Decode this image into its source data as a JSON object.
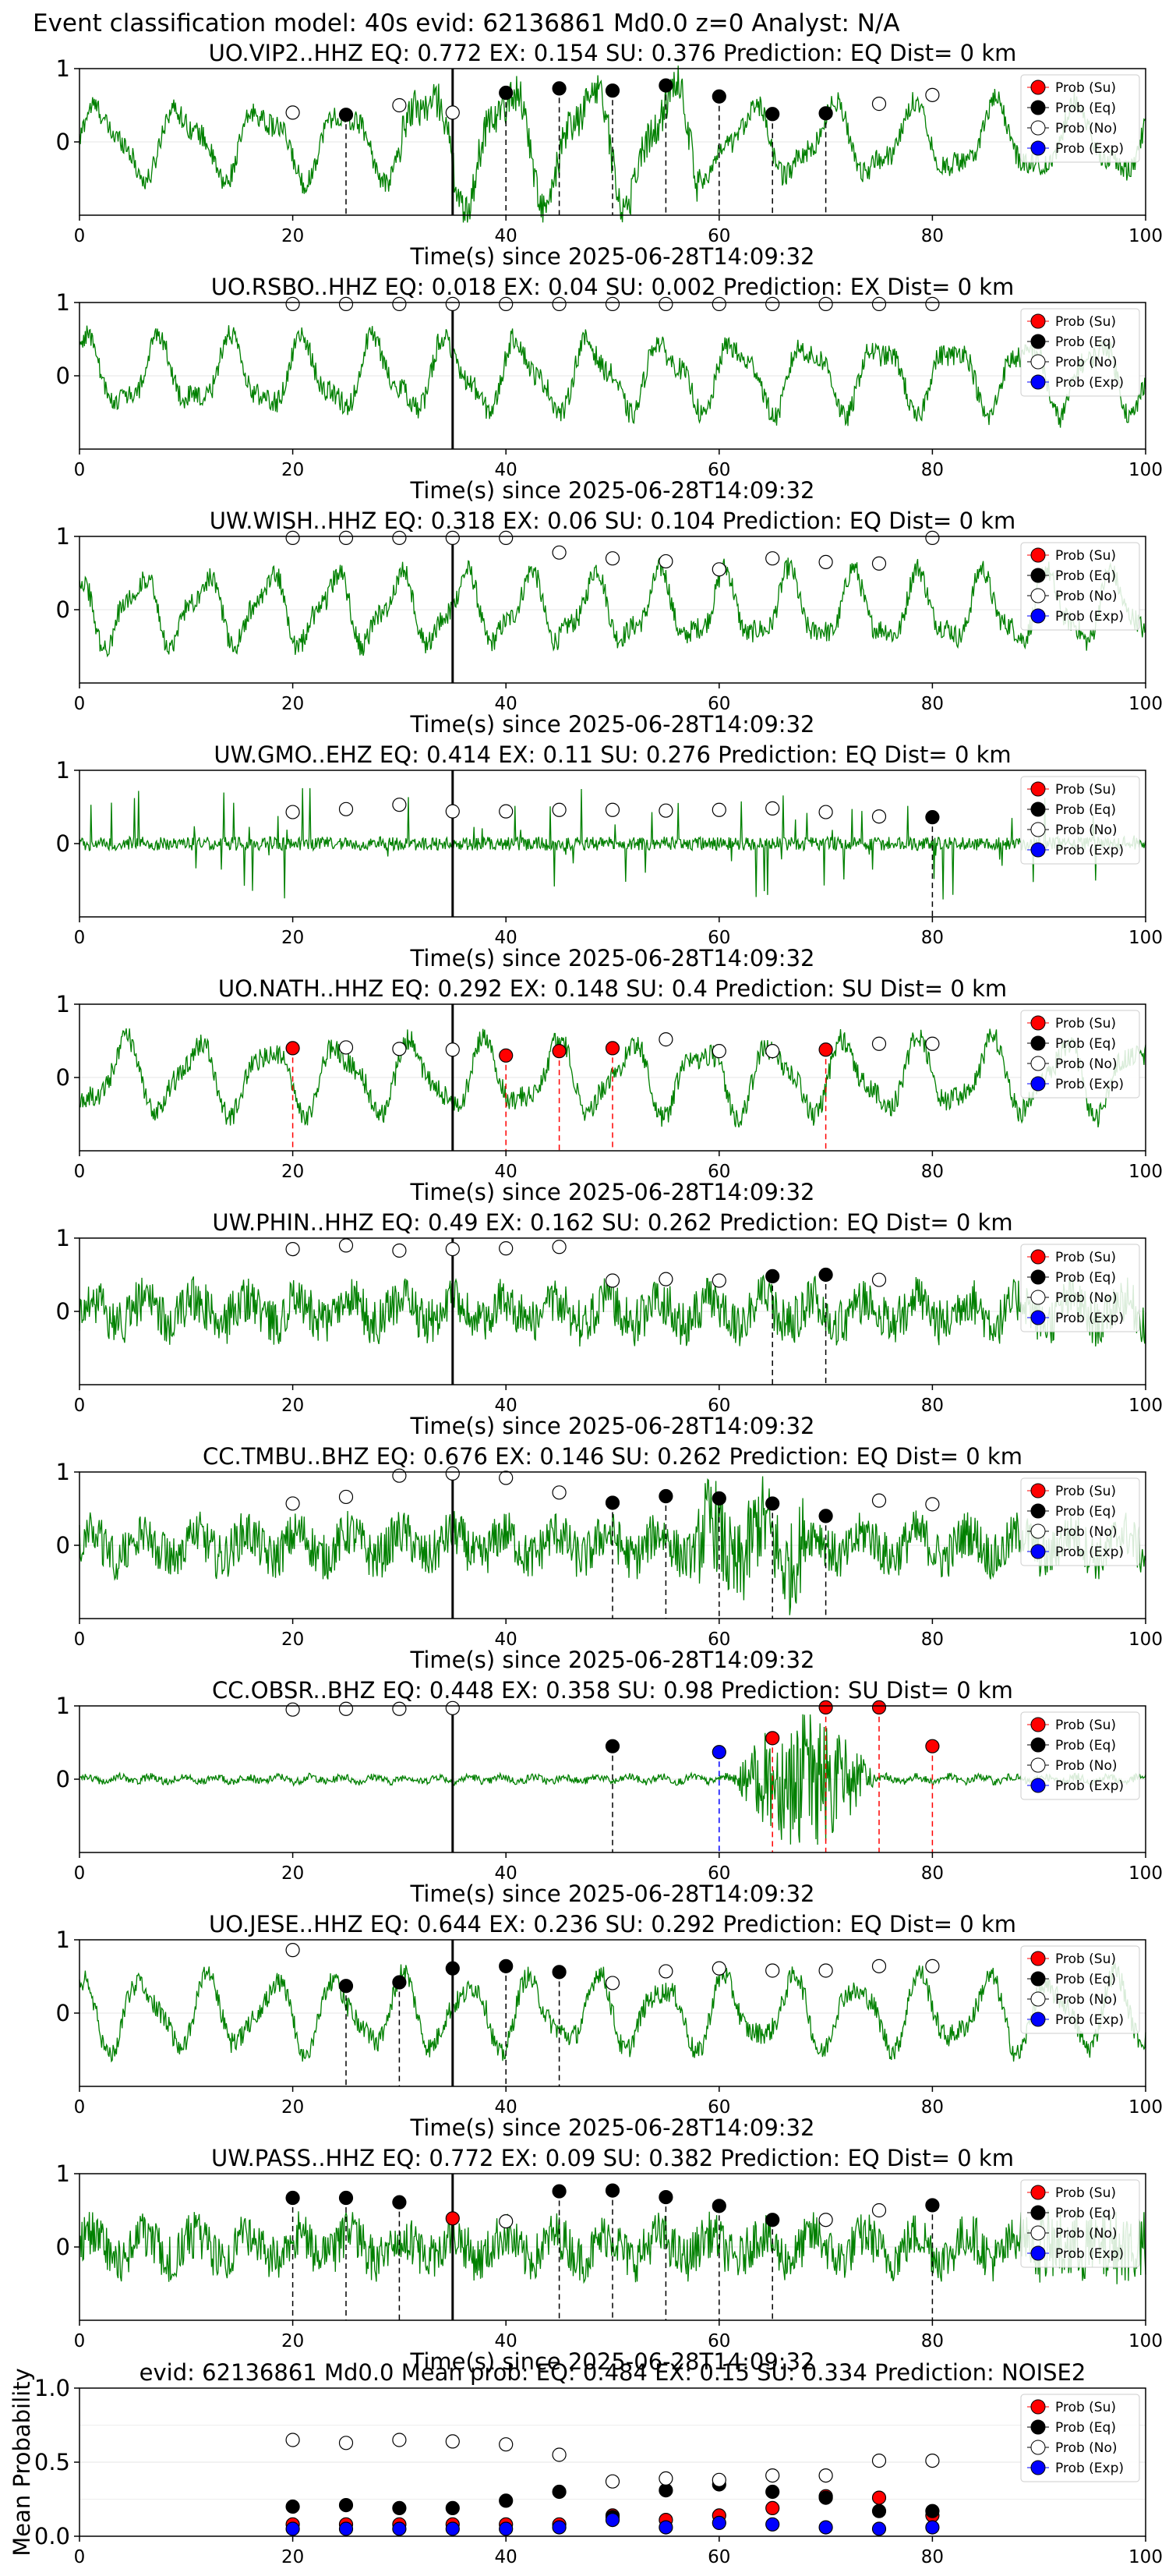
{
  "header": "Event classification model: 40s evid: 62136861 Md0.0 z=0 Analyst: N/A",
  "x_axis_label": "Time(s) since 2025-06-28T14:09:32",
  "legend": [
    "Prob (Su)",
    "Prob (Eq)",
    "Prob (No)",
    "Prob (Exp)"
  ],
  "colors": {
    "Su": "#ff0000",
    "Eq": "#000000",
    "No": "#ffffff",
    "Exp": "#0000ff",
    "trace": "#008000",
    "su_line": "#ff0000",
    "eq_line": "#000000",
    "exp_line": "#0000ff"
  },
  "chart_data": [
    {
      "type": "line",
      "station": "UO.VIP2..HHZ",
      "title": "UO.VIP2..HHZ   EQ: 0.772  EX: 0.154  SU: 0.376   Prediction: EQ    Dist= 0 km",
      "xlim": [
        0,
        100
      ],
      "ylim": [
        -1,
        1
      ],
      "xticks": [
        0,
        20,
        40,
        60,
        80,
        100
      ],
      "yticks": [
        1,
        0
      ],
      "marker_time": 35,
      "trace_style": "osc",
      "points": [
        {
          "x": 20,
          "y": 0.4,
          "c": "No"
        },
        {
          "x": 25,
          "y": 0.37,
          "c": "Eq",
          "line": "Eq"
        },
        {
          "x": 30,
          "y": 0.5,
          "c": "No"
        },
        {
          "x": 35,
          "y": 0.4,
          "c": "No"
        },
        {
          "x": 40,
          "y": 0.67,
          "c": "Eq",
          "line": "Eq"
        },
        {
          "x": 45,
          "y": 0.73,
          "c": "Eq",
          "line": "Eq"
        },
        {
          "x": 50,
          "y": 0.7,
          "c": "Eq",
          "line": "Eq"
        },
        {
          "x": 55,
          "y": 0.77,
          "c": "Eq",
          "line": "Eq"
        },
        {
          "x": 60,
          "y": 0.62,
          "c": "Eq",
          "line": "Eq"
        },
        {
          "x": 65,
          "y": 0.38,
          "c": "Eq",
          "line": "Eq"
        },
        {
          "x": 70,
          "y": 0.39,
          "c": "Eq",
          "line": "Eq"
        },
        {
          "x": 75,
          "y": 0.52,
          "c": "No"
        },
        {
          "x": 80,
          "y": 0.64,
          "c": "No"
        }
      ]
    },
    {
      "type": "line",
      "station": "UO.RSBO..HHZ",
      "title": "UO.RSBO..HHZ   EQ: 0.018  EX: 0.04  SU: 0.002   Prediction: EX    Dist= 0 km",
      "xlim": [
        0,
        100
      ],
      "ylim": [
        -1,
        1
      ],
      "xticks": [
        0,
        20,
        40,
        60,
        80,
        100
      ],
      "yticks": [
        1,
        0
      ],
      "marker_time": 35,
      "trace_style": "osc",
      "points": [
        {
          "x": 20,
          "y": 0.98,
          "c": "No"
        },
        {
          "x": 25,
          "y": 0.98,
          "c": "No"
        },
        {
          "x": 30,
          "y": 0.98,
          "c": "No"
        },
        {
          "x": 35,
          "y": 0.98,
          "c": "No"
        },
        {
          "x": 40,
          "y": 0.98,
          "c": "No"
        },
        {
          "x": 45,
          "y": 0.98,
          "c": "No"
        },
        {
          "x": 50,
          "y": 0.98,
          "c": "No"
        },
        {
          "x": 55,
          "y": 0.98,
          "c": "No"
        },
        {
          "x": 60,
          "y": 0.98,
          "c": "No"
        },
        {
          "x": 65,
          "y": 0.98,
          "c": "No"
        },
        {
          "x": 70,
          "y": 0.98,
          "c": "No"
        },
        {
          "x": 75,
          "y": 0.98,
          "c": "No"
        },
        {
          "x": 80,
          "y": 0.98,
          "c": "No"
        }
      ]
    },
    {
      "type": "line",
      "station": "UW.WISH..HHZ",
      "title": "UW.WISH..HHZ   EQ: 0.318  EX: 0.06  SU: 0.104   Prediction: EQ    Dist= 0 km",
      "xlim": [
        0,
        100
      ],
      "ylim": [
        -1,
        1
      ],
      "xticks": [
        0,
        20,
        40,
        60,
        80,
        100
      ],
      "yticks": [
        1,
        0
      ],
      "marker_time": 35,
      "trace_style": "osc",
      "points": [
        {
          "x": 20,
          "y": 0.98,
          "c": "No"
        },
        {
          "x": 25,
          "y": 0.98,
          "c": "No"
        },
        {
          "x": 30,
          "y": 0.98,
          "c": "No"
        },
        {
          "x": 35,
          "y": 0.98,
          "c": "No"
        },
        {
          "x": 40,
          "y": 0.98,
          "c": "No"
        },
        {
          "x": 45,
          "y": 0.78,
          "c": "No"
        },
        {
          "x": 50,
          "y": 0.7,
          "c": "No"
        },
        {
          "x": 55,
          "y": 0.66,
          "c": "No"
        },
        {
          "x": 60,
          "y": 0.55,
          "c": "No"
        },
        {
          "x": 65,
          "y": 0.7,
          "c": "No"
        },
        {
          "x": 70,
          "y": 0.65,
          "c": "No"
        },
        {
          "x": 75,
          "y": 0.63,
          "c": "No"
        },
        {
          "x": 80,
          "y": 0.98,
          "c": "No"
        }
      ]
    },
    {
      "type": "line",
      "station": "UW.GMO..EHZ",
      "title": "UW.GMO..EHZ   EQ: 0.414  EX: 0.11  SU: 0.276   Prediction: EQ    Dist= 0 km",
      "xlim": [
        0,
        100
      ],
      "ylim": [
        -1,
        1
      ],
      "xticks": [
        0,
        20,
        40,
        60,
        80,
        100
      ],
      "yticks": [
        1,
        0
      ],
      "marker_time": 35,
      "trace_style": "spiky",
      "points": [
        {
          "x": 20,
          "y": 0.43,
          "c": "No"
        },
        {
          "x": 25,
          "y": 0.47,
          "c": "No"
        },
        {
          "x": 30,
          "y": 0.53,
          "c": "No"
        },
        {
          "x": 35,
          "y": 0.44,
          "c": "No"
        },
        {
          "x": 40,
          "y": 0.44,
          "c": "No"
        },
        {
          "x": 45,
          "y": 0.46,
          "c": "No"
        },
        {
          "x": 50,
          "y": 0.46,
          "c": "No"
        },
        {
          "x": 55,
          "y": 0.45,
          "c": "No"
        },
        {
          "x": 60,
          "y": 0.46,
          "c": "No"
        },
        {
          "x": 65,
          "y": 0.48,
          "c": "No"
        },
        {
          "x": 70,
          "y": 0.43,
          "c": "No"
        },
        {
          "x": 75,
          "y": 0.37,
          "c": "No"
        },
        {
          "x": 80,
          "y": 0.36,
          "c": "Eq",
          "line": "Eq"
        }
      ]
    },
    {
      "type": "line",
      "station": "UO.NATH..HHZ",
      "title": "UO.NATH..HHZ   EQ: 0.292  EX: 0.148  SU: 0.4   Prediction: SU    Dist= 0 km",
      "xlim": [
        0,
        100
      ],
      "ylim": [
        -1,
        1
      ],
      "xticks": [
        0,
        20,
        40,
        60,
        80,
        100
      ],
      "yticks": [
        1,
        0
      ],
      "marker_time": 35,
      "trace_style": "osc",
      "points": [
        {
          "x": 20,
          "y": 0.4,
          "c": "Su",
          "line": "Su"
        },
        {
          "x": 25,
          "y": 0.41,
          "c": "No"
        },
        {
          "x": 30,
          "y": 0.39,
          "c": "No"
        },
        {
          "x": 35,
          "y": 0.38,
          "c": "No"
        },
        {
          "x": 40,
          "y": 0.3,
          "c": "Su",
          "line": "Su"
        },
        {
          "x": 45,
          "y": 0.36,
          "c": "Su",
          "line": "Su"
        },
        {
          "x": 50,
          "y": 0.4,
          "c": "Su",
          "line": "Su"
        },
        {
          "x": 55,
          "y": 0.52,
          "c": "No"
        },
        {
          "x": 60,
          "y": 0.36,
          "c": "No"
        },
        {
          "x": 65,
          "y": 0.36,
          "c": "No"
        },
        {
          "x": 70,
          "y": 0.38,
          "c": "Su",
          "line": "Su"
        },
        {
          "x": 75,
          "y": 0.46,
          "c": "No"
        },
        {
          "x": 80,
          "y": 0.46,
          "c": "No"
        }
      ]
    },
    {
      "type": "line",
      "station": "UW.PHIN..HHZ",
      "title": "UW.PHIN..HHZ   EQ: 0.49  EX: 0.162  SU: 0.262   Prediction: EQ    Dist= 0 km",
      "xlim": [
        0,
        100
      ],
      "ylim": [
        -1,
        1
      ],
      "xticks": [
        0,
        20,
        40,
        60,
        80,
        100
      ],
      "yticks": [
        1,
        0
      ],
      "marker_time": 35,
      "trace_style": "noise",
      "points": [
        {
          "x": 20,
          "y": 0.85,
          "c": "No"
        },
        {
          "x": 25,
          "y": 0.9,
          "c": "No"
        },
        {
          "x": 30,
          "y": 0.83,
          "c": "No"
        },
        {
          "x": 35,
          "y": 0.85,
          "c": "No"
        },
        {
          "x": 40,
          "y": 0.86,
          "c": "No"
        },
        {
          "x": 45,
          "y": 0.88,
          "c": "No"
        },
        {
          "x": 50,
          "y": 0.42,
          "c": "No"
        },
        {
          "x": 55,
          "y": 0.44,
          "c": "No"
        },
        {
          "x": 60,
          "y": 0.42,
          "c": "No"
        },
        {
          "x": 65,
          "y": 0.48,
          "c": "Eq",
          "line": "Eq"
        },
        {
          "x": 70,
          "y": 0.5,
          "c": "Eq",
          "line": "Eq"
        },
        {
          "x": 75,
          "y": 0.43,
          "c": "No"
        }
      ]
    },
    {
      "type": "line",
      "station": "CC.TMBU..BHZ",
      "title": "CC.TMBU..BHZ   EQ: 0.676  EX: 0.146  SU: 0.262   Prediction: EQ    Dist= 0 km",
      "xlim": [
        0,
        100
      ],
      "ylim": [
        -1,
        1
      ],
      "xticks": [
        0,
        20,
        40,
        60,
        80,
        100
      ],
      "yticks": [
        1,
        0
      ],
      "marker_time": 35,
      "trace_style": "noise",
      "points": [
        {
          "x": 20,
          "y": 0.57,
          "c": "No"
        },
        {
          "x": 25,
          "y": 0.66,
          "c": "No"
        },
        {
          "x": 30,
          "y": 0.95,
          "c": "No"
        },
        {
          "x": 35,
          "y": 0.98,
          "c": "No"
        },
        {
          "x": 40,
          "y": 0.92,
          "c": "No"
        },
        {
          "x": 45,
          "y": 0.72,
          "c": "No"
        },
        {
          "x": 50,
          "y": 0.58,
          "c": "Eq",
          "line": "Eq"
        },
        {
          "x": 55,
          "y": 0.67,
          "c": "Eq",
          "line": "Eq"
        },
        {
          "x": 60,
          "y": 0.64,
          "c": "Eq",
          "line": "Eq"
        },
        {
          "x": 65,
          "y": 0.57,
          "c": "Eq",
          "line": "Eq"
        },
        {
          "x": 70,
          "y": 0.4,
          "c": "Eq",
          "line": "Eq"
        },
        {
          "x": 75,
          "y": 0.61,
          "c": "No"
        },
        {
          "x": 80,
          "y": 0.56,
          "c": "No"
        }
      ]
    },
    {
      "type": "line",
      "station": "CC.OBSR..BHZ",
      "title": "CC.OBSR..BHZ   EQ: 0.448  EX: 0.358  SU: 0.98   Prediction: SU    Dist= 0 km",
      "xlim": [
        0,
        100
      ],
      "ylim": [
        -1,
        1
      ],
      "xticks": [
        0,
        20,
        40,
        60,
        80,
        100
      ],
      "yticks": [
        1,
        0
      ],
      "marker_time": 35,
      "trace_style": "quiet",
      "points": [
        {
          "x": 20,
          "y": 0.95,
          "c": "No"
        },
        {
          "x": 25,
          "y": 0.96,
          "c": "No"
        },
        {
          "x": 30,
          "y": 0.96,
          "c": "No"
        },
        {
          "x": 35,
          "y": 0.97,
          "c": "No"
        },
        {
          "x": 50,
          "y": 0.45,
          "c": "Eq",
          "line": "Eq"
        },
        {
          "x": 60,
          "y": 0.37,
          "c": "Exp",
          "line": "Exp"
        },
        {
          "x": 65,
          "y": 0.56,
          "c": "Su",
          "line": "Su"
        },
        {
          "x": 70,
          "y": 0.98,
          "c": "Su",
          "line": "Su"
        },
        {
          "x": 75,
          "y": 0.98,
          "c": "Su",
          "line": "Su"
        },
        {
          "x": 80,
          "y": 0.45,
          "c": "Su",
          "line": "Su"
        }
      ]
    },
    {
      "type": "line",
      "station": "UO.JESE..HHZ",
      "title": "UO.JESE..HHZ   EQ: 0.644  EX: 0.236  SU: 0.292   Prediction: EQ    Dist= 0 km",
      "xlim": [
        0,
        100
      ],
      "ylim": [
        -1,
        1
      ],
      "xticks": [
        0,
        20,
        40,
        60,
        80,
        100
      ],
      "yticks": [
        1,
        0
      ],
      "marker_time": 35,
      "trace_style": "osc",
      "points": [
        {
          "x": 20,
          "y": 0.86,
          "c": "No"
        },
        {
          "x": 25,
          "y": 0.37,
          "c": "Eq",
          "line": "Eq"
        },
        {
          "x": 30,
          "y": 0.42,
          "c": "Eq",
          "line": "Eq"
        },
        {
          "x": 35,
          "y": 0.61,
          "c": "Eq",
          "line": "Eq"
        },
        {
          "x": 40,
          "y": 0.64,
          "c": "Eq",
          "line": "Eq"
        },
        {
          "x": 45,
          "y": 0.56,
          "c": "Eq",
          "line": "Eq"
        },
        {
          "x": 50,
          "y": 0.41,
          "c": "No"
        },
        {
          "x": 55,
          "y": 0.57,
          "c": "No"
        },
        {
          "x": 60,
          "y": 0.61,
          "c": "No"
        },
        {
          "x": 65,
          "y": 0.58,
          "c": "No"
        },
        {
          "x": 70,
          "y": 0.58,
          "c": "No"
        },
        {
          "x": 75,
          "y": 0.64,
          "c": "No"
        },
        {
          "x": 80,
          "y": 0.64,
          "c": "No"
        }
      ]
    },
    {
      "type": "line",
      "station": "UW.PASS..HHZ",
      "title": "UW.PASS..HHZ   EQ: 0.772  EX: 0.09  SU: 0.382   Prediction: EQ    Dist= 0 km",
      "xlim": [
        0,
        100
      ],
      "ylim": [
        -1,
        1
      ],
      "xticks": [
        0,
        20,
        40,
        60,
        80,
        100
      ],
      "yticks": [
        1,
        0
      ],
      "marker_time": 35,
      "trace_style": "noise",
      "points": [
        {
          "x": 20,
          "y": 0.67,
          "c": "Eq",
          "line": "Eq"
        },
        {
          "x": 25,
          "y": 0.67,
          "c": "Eq",
          "line": "Eq"
        },
        {
          "x": 30,
          "y": 0.61,
          "c": "Eq",
          "line": "Eq"
        },
        {
          "x": 35,
          "y": 0.39,
          "c": "Su"
        },
        {
          "x": 40,
          "y": 0.35,
          "c": "No"
        },
        {
          "x": 45,
          "y": 0.76,
          "c": "Eq",
          "line": "Eq"
        },
        {
          "x": 50,
          "y": 0.77,
          "c": "Eq",
          "line": "Eq"
        },
        {
          "x": 55,
          "y": 0.68,
          "c": "Eq",
          "line": "Eq"
        },
        {
          "x": 60,
          "y": 0.56,
          "c": "Eq",
          "line": "Eq"
        },
        {
          "x": 65,
          "y": 0.37,
          "c": "Eq",
          "line": "Eq"
        },
        {
          "x": 70,
          "y": 0.37,
          "c": "No"
        },
        {
          "x": 75,
          "y": 0.5,
          "c": "No"
        },
        {
          "x": 80,
          "y": 0.57,
          "c": "Eq",
          "line": "Eq"
        }
      ]
    },
    {
      "type": "scatter",
      "title": "evid: 62136861  Md0.0   Mean prob:   EQ: 0.484  EX: 0.15  SU: 0.334   Prediction: NOISE2",
      "ylabel": "Mean Probability",
      "xlim": [
        0,
        100
      ],
      "ylim": [
        0,
        1
      ],
      "xticks": [
        0,
        20,
        40,
        60,
        80,
        100
      ],
      "yticks": [
        1.0,
        0.5,
        0.0
      ],
      "x": [
        20,
        25,
        30,
        35,
        40,
        45,
        50,
        55,
        60,
        65,
        70,
        75,
        80
      ],
      "series": [
        {
          "name": "Prob (Su)",
          "values": [
            0.08,
            0.08,
            0.08,
            0.08,
            0.08,
            0.08,
            0.14,
            0.11,
            0.14,
            0.19,
            0.27,
            0.26,
            0.14
          ]
        },
        {
          "name": "Prob (Eq)",
          "values": [
            0.2,
            0.21,
            0.19,
            0.19,
            0.24,
            0.3,
            0.13,
            0.31,
            0.35,
            0.3,
            0.26,
            0.17,
            0.17
          ]
        },
        {
          "name": "Prob (No)",
          "values": [
            0.65,
            0.63,
            0.65,
            0.64,
            0.62,
            0.55,
            0.37,
            0.39,
            0.38,
            0.41,
            0.41,
            0.51,
            0.51
          ]
        },
        {
          "name": "Prob (Exp)",
          "values": [
            0.05,
            0.05,
            0.05,
            0.05,
            0.05,
            0.06,
            0.11,
            0.06,
            0.09,
            0.08,
            0.06,
            0.05,
            0.06
          ]
        }
      ]
    }
  ]
}
